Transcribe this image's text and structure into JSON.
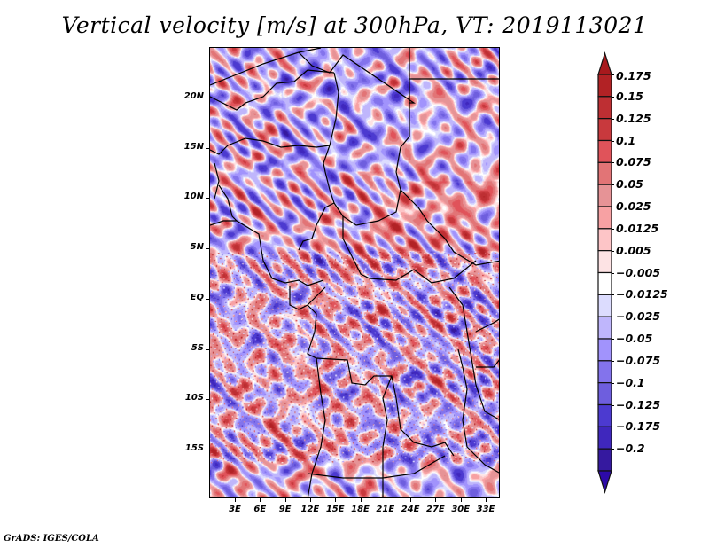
{
  "title": "Vertical velocity [m/s] at 300hPa, VT: 2019113021",
  "footer": "GrADS: IGES/COLA",
  "map": {
    "region": "Central Africa",
    "lon_range": [
      0,
      35
    ],
    "lat_range": [
      -20,
      25
    ],
    "y_ticks": [
      {
        "value": 20,
        "label": "20N"
      },
      {
        "value": 15,
        "label": "15N"
      },
      {
        "value": 10,
        "label": "10N"
      },
      {
        "value": 5,
        "label": "5N"
      },
      {
        "value": 0,
        "label": "EQ"
      },
      {
        "value": -5,
        "label": "5S"
      },
      {
        "value": -10,
        "label": "10S"
      },
      {
        "value": -15,
        "label": "15S"
      }
    ],
    "x_ticks": [
      {
        "value": 3,
        "label": "3E"
      },
      {
        "value": 6,
        "label": "6E"
      },
      {
        "value": 9,
        "label": "9E"
      },
      {
        "value": 12,
        "label": "12E"
      },
      {
        "value": 15,
        "label": "15E"
      },
      {
        "value": 18,
        "label": "18E"
      },
      {
        "value": 21,
        "label": "21E"
      },
      {
        "value": 24,
        "label": "24E"
      },
      {
        "value": 27,
        "label": "27E"
      },
      {
        "value": 30,
        "label": "30E"
      },
      {
        "value": 33,
        "label": "33E"
      }
    ]
  },
  "colorbar": {
    "levels": [
      "0.175",
      "0.15",
      "0.125",
      "0.1",
      "0.075",
      "0.05",
      "0.025",
      "0.0125",
      "0.005",
      "−0.005",
      "−0.0125",
      "−0.025",
      "−0.05",
      "−0.075",
      "−0.1",
      "−0.125",
      "−0.175",
      "−0.2"
    ],
    "colors": [
      "#b22225",
      "#be2f33",
      "#c8393d",
      "#e0535a",
      "#e27476",
      "#e69396",
      "#f7a1a3",
      "#fdc5c7",
      "#fde3e4",
      "#ffffff",
      "#dcdcfe",
      "#bfb6fc",
      "#a193fc",
      "#8373ec",
      "#6e5ede",
      "#4c3ad0",
      "#3f27bd",
      "#35199f"
    ],
    "top_arrow_color": "#a8191d",
    "bottom_arrow_color": "#2d0aa8"
  }
}
